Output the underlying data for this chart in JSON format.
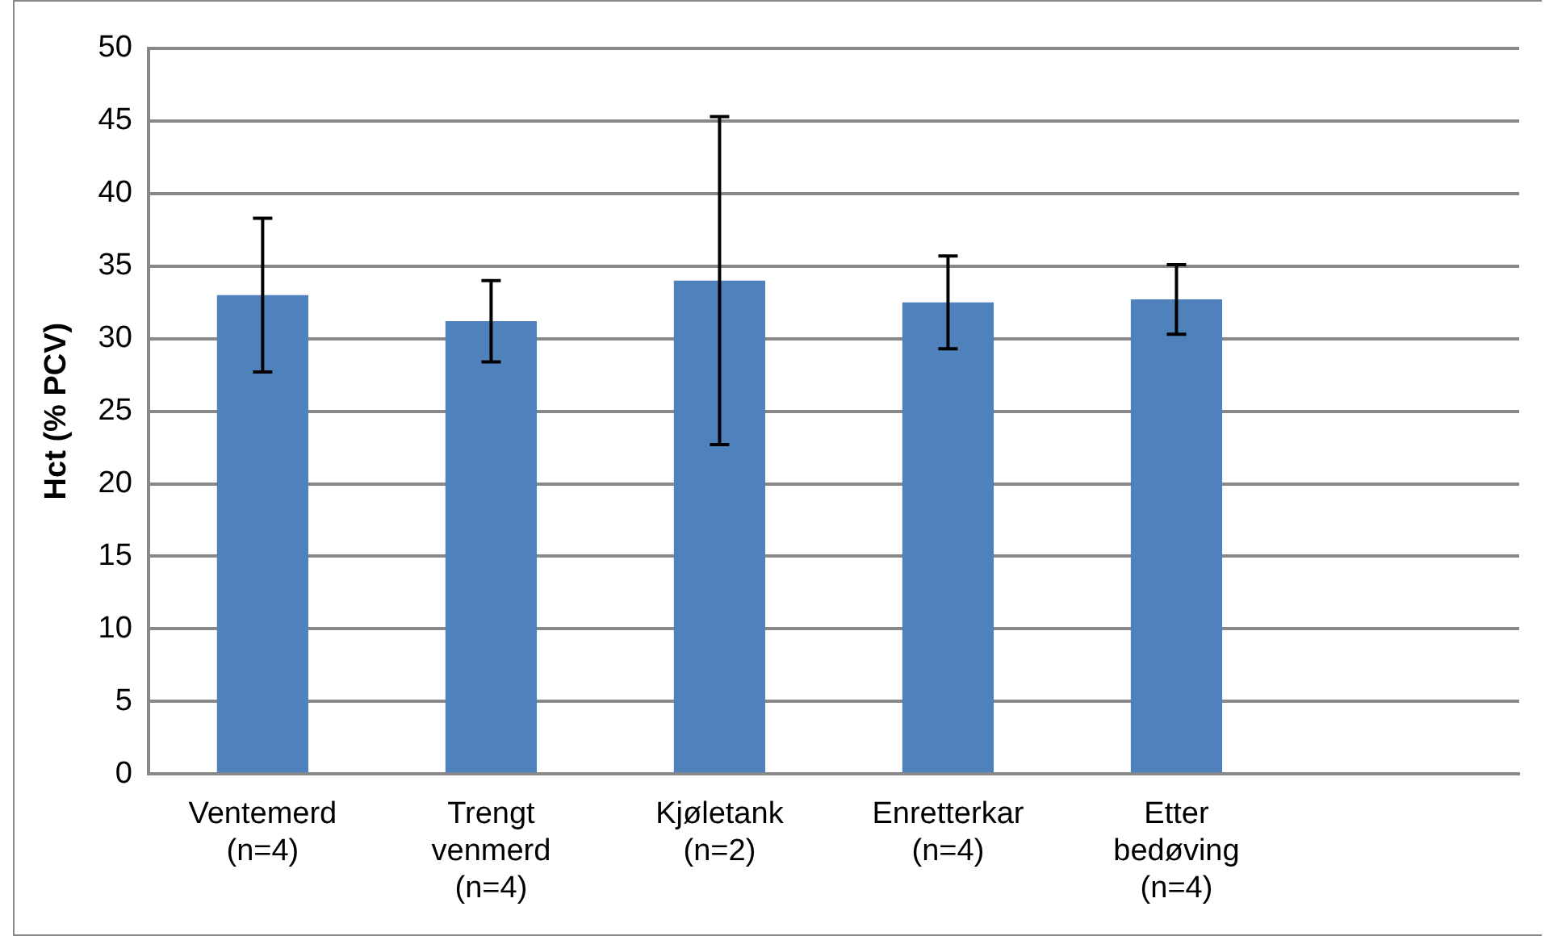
{
  "chart_data": {
    "type": "bar",
    "ylabel": "Hct (% PCV)",
    "categories": [
      "Ventemerd\n(n=4)",
      "Trengt\nvenmerd\n(n=4)",
      "Kjøletank\n(n=2)",
      "Enretterkar\n(n=4)",
      "Etter\nbedøving\n(n=4)",
      null
    ],
    "values": [
      33.0,
      31.2,
      34.0,
      32.5,
      32.7,
      null
    ],
    "errors": [
      5.3,
      2.8,
      11.3,
      3.2,
      2.4,
      null
    ],
    "color": "#4f81bd",
    "ylim": [
      0,
      50
    ],
    "yticks": [
      0,
      5,
      10,
      15,
      20,
      25,
      30,
      35,
      40,
      45,
      50
    ],
    "grid": "y",
    "legend": false
  }
}
